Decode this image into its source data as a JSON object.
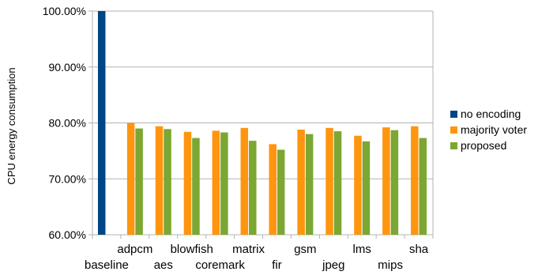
{
  "chart_data": {
    "type": "bar",
    "ylabel": "CPU energy consumption",
    "ylim": [
      60,
      100
    ],
    "yticks": [
      60,
      70,
      80,
      90,
      100
    ],
    "ytick_labels": [
      "60.00%",
      "70.00%",
      "80.00%",
      "90.00%",
      "100.00%"
    ],
    "grid": true,
    "legend_position": "right",
    "categories": [
      "baseline",
      "adpcm",
      "aes",
      "blowfish",
      "coremark",
      "matrix",
      "fir",
      "gsm",
      "jpeg",
      "lms",
      "mips",
      "sha"
    ],
    "series": [
      {
        "name": "no encoding",
        "color": "#004586",
        "values": [
          100,
          null,
          null,
          null,
          null,
          null,
          null,
          null,
          null,
          null,
          null,
          null
        ]
      },
      {
        "name": "majority voter",
        "color": "#ff950e",
        "values": [
          null,
          80.0,
          79.4,
          78.4,
          78.6,
          79.1,
          76.2,
          78.8,
          79.1,
          77.7,
          79.2,
          79.4
        ]
      },
      {
        "name": "proposed",
        "color": "#7ba732",
        "values": [
          null,
          79.0,
          78.9,
          77.3,
          78.3,
          76.8,
          75.2,
          78.0,
          78.5,
          76.7,
          78.7,
          77.3
        ]
      }
    ]
  }
}
